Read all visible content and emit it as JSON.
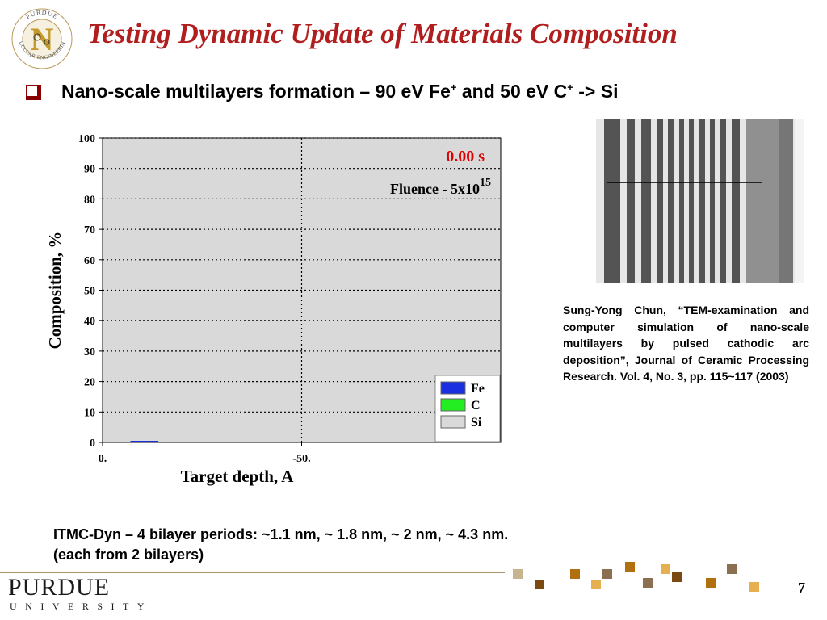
{
  "slide": {
    "title": "Testing Dynamic Update of Materials Composition",
    "bullet_main": "Nano-scale multilayers formation – 90 eV Fe",
    "bullet_sup1": "+",
    "bullet_mid": " and 50 eV C",
    "bullet_sup2": "+",
    "bullet_end": " -> Si",
    "citation": "Sung-Yong Chun, “TEM-examination and computer simulation of nano-scale multilayers by pulsed cathodic arc deposition”, Journal of Ceramic Processing Research. Vol. 4, No. 3, pp. 115~117 (2003)",
    "footer_line1": "ITMC-Dyn – 4 bilayer periods: ~1.1 nm,  ~ 1.8 nm, ~ 2 nm, ~ 4.3 nm.",
    "footer_line2": "(each from 2 bilayers)",
    "page_number": "7",
    "university_name": "PURDUE",
    "university_sub": "UNIVERSITY",
    "logo_text": "PURDUE NUCLEAR ENGINEERING",
    "accent_color": "#b01e1e"
  },
  "chart_data": {
    "type": "area",
    "xlabel": "Target depth, A",
    "ylabel": "Composition, %",
    "x_tick_labels": [
      "0.",
      "-50."
    ],
    "x_ticks": [
      0,
      -50
    ],
    "xlim": [
      0,
      -100
    ],
    "ylim": [
      0,
      100
    ],
    "y_ticks": [
      0,
      10,
      20,
      30,
      40,
      50,
      60,
      70,
      80,
      90,
      100
    ],
    "grid": true,
    "legend_position": "bottom-right",
    "time_label": "0.00 s",
    "fluence_label": "Fluence - 5x10",
    "fluence_exponent": "15",
    "series": [
      {
        "name": "Fe",
        "color": "#1a2fe0",
        "x": [
          -7,
          -14
        ],
        "values": [
          0.5,
          0.5
        ]
      },
      {
        "name": "C",
        "color": "#22ee22",
        "x": [],
        "values": []
      },
      {
        "name": "Si",
        "color": "#d9d9d9",
        "x": [
          0,
          -100
        ],
        "values": [
          100,
          100
        ]
      }
    ]
  }
}
